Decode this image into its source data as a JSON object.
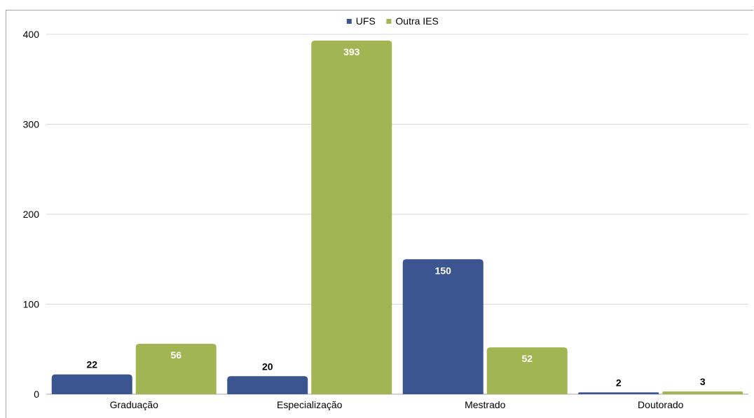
{
  "chart_data": {
    "type": "bar",
    "categories": [
      "Graduação",
      "Especialização",
      "Mestrado",
      "Doutorado"
    ],
    "series": [
      {
        "name": "UFS",
        "color": "#3b5590",
        "values": [
          22,
          20,
          150,
          2
        ]
      },
      {
        "name": "Outra IES",
        "color": "#a3b553",
        "values": [
          56,
          393,
          52,
          3
        ]
      }
    ],
    "ylim": [
      0,
      400
    ],
    "yticks": [
      0,
      100,
      200,
      300,
      400
    ],
    "grid": true,
    "legend_position": "top-center",
    "data_labels": true
  }
}
